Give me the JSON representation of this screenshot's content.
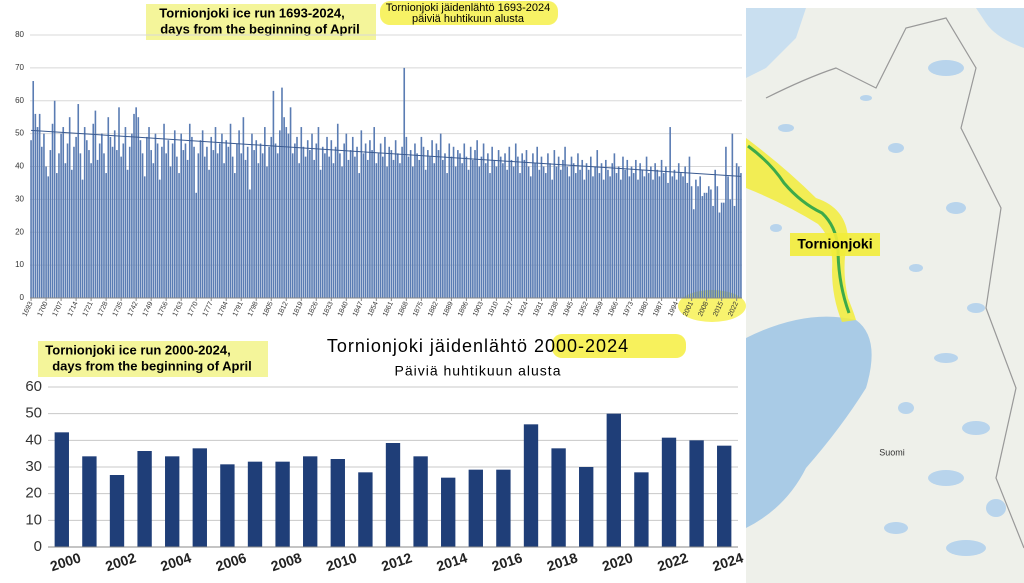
{
  "chart_data": [
    {
      "type": "bar",
      "title": "Tornionjoki jäidenlähtö 1693-2024",
      "subtitle": "päiviä huhtikuun alusta",
      "annotations": [
        "Tornionjoki ice run 1693-2024,",
        "days from the beginning of April"
      ],
      "color": "#5a7cb3",
      "grid": true,
      "xlim": [
        1692.5,
        2024.5
      ],
      "xticks": [
        1693,
        1700,
        1707,
        1714,
        1721,
        1728,
        1735,
        1742,
        1749,
        1756,
        1763,
        1770,
        1777,
        1784,
        1791,
        1798,
        1805,
        1812,
        1819,
        1826,
        1833,
        1840,
        1847,
        1854,
        1861,
        1868,
        1875,
        1882,
        1889,
        1896,
        1903,
        1910,
        1917,
        1924,
        1931,
        1938,
        1945,
        1952,
        1959,
        1966,
        1973,
        1980,
        1987,
        1994,
        2001,
        2008,
        2015,
        2022
      ],
      "ylim": [
        0,
        80
      ],
      "yticks": [
        0,
        10,
        20,
        30,
        40,
        50,
        60,
        70,
        80
      ],
      "x": [
        1693,
        1694,
        1695,
        1696,
        1697,
        1698,
        1699,
        1700,
        1701,
        1702,
        1703,
        1704,
        1705,
        1706,
        1707,
        1708,
        1709,
        1710,
        1711,
        1712,
        1713,
        1714,
        1715,
        1716,
        1717,
        1718,
        1719,
        1720,
        1721,
        1722,
        1723,
        1724,
        1725,
        1726,
        1727,
        1728,
        1729,
        1730,
        1731,
        1732,
        1733,
        1734,
        1735,
        1736,
        1737,
        1738,
        1739,
        1740,
        1741,
        1742,
        1743,
        1744,
        1745,
        1746,
        1747,
        1748,
        1749,
        1750,
        1751,
        1752,
        1753,
        1754,
        1755,
        1756,
        1757,
        1758,
        1759,
        1760,
        1761,
        1762,
        1763,
        1764,
        1765,
        1766,
        1767,
        1768,
        1769,
        1770,
        1771,
        1772,
        1773,
        1774,
        1775,
        1776,
        1777,
        1778,
        1779,
        1780,
        1781,
        1782,
        1783,
        1784,
        1785,
        1786,
        1787,
        1788,
        1789,
        1790,
        1791,
        1792,
        1793,
        1794,
        1795,
        1796,
        1797,
        1798,
        1799,
        1800,
        1801,
        1802,
        1803,
        1804,
        1805,
        1806,
        1807,
        1808,
        1809,
        1810,
        1811,
        1812,
        1813,
        1814,
        1815,
        1816,
        1817,
        1818,
        1819,
        1820,
        1821,
        1822,
        1823,
        1824,
        1825,
        1826,
        1827,
        1828,
        1829,
        1830,
        1831,
        1832,
        1833,
        1834,
        1835,
        1836,
        1837,
        1838,
        1839,
        1840,
        1841,
        1842,
        1843,
        1844,
        1845,
        1846,
        1847,
        1848,
        1849,
        1850,
        1851,
        1852,
        1853,
        1854,
        1855,
        1856,
        1857,
        1858,
        1859,
        1860,
        1861,
        1862,
        1863,
        1864,
        1865,
        1866,
        1867,
        1868,
        1869,
        1870,
        1871,
        1872,
        1873,
        1874,
        1875,
        1876,
        1877,
        1878,
        1879,
        1880,
        1881,
        1882,
        1883,
        1884,
        1885,
        1886,
        1887,
        1888,
        1889,
        1890,
        1891,
        1892,
        1893,
        1894,
        1895,
        1896,
        1897,
        1898,
        1899,
        1900,
        1901,
        1902,
        1903,
        1904,
        1905,
        1906,
        1907,
        1908,
        1909,
        1910,
        1911,
        1912,
        1913,
        1914,
        1915,
        1916,
        1917,
        1918,
        1919,
        1920,
        1921,
        1922,
        1923,
        1924,
        1925,
        1926,
        1927,
        1928,
        1929,
        1930,
        1931,
        1932,
        1933,
        1934,
        1935,
        1936,
        1937,
        1938,
        1939,
        1940,
        1941,
        1942,
        1943,
        1944,
        1945,
        1946,
        1947,
        1948,
        1949,
        1950,
        1951,
        1952,
        1953,
        1954,
        1955,
        1956,
        1957,
        1958,
        1959,
        1960,
        1961,
        1962,
        1963,
        1964,
        1965,
        1966,
        1967,
        1968,
        1969,
        1970,
        1971,
        1972,
        1973,
        1974,
        1975,
        1976,
        1977,
        1978,
        1979,
        1980,
        1981,
        1982,
        1983,
        1984,
        1985,
        1986,
        1987,
        1988,
        1989,
        1990,
        1991,
        1992,
        1993,
        1994,
        1995,
        1996,
        1997,
        1998,
        1999,
        2000,
        2001,
        2002,
        2003,
        2004,
        2005,
        2006,
        2007,
        2008,
        2009,
        2010,
        2011,
        2012,
        2013,
        2014,
        2015,
        2016,
        2017,
        2018,
        2019,
        2020,
        2021,
        2022,
        2023,
        2024
      ],
      "values": [
        48,
        66,
        56,
        52,
        56,
        46,
        50,
        40,
        37,
        45,
        53,
        60,
        38,
        44,
        50,
        52,
        41,
        47,
        55,
        39,
        46,
        49,
        59,
        44,
        36,
        52,
        48,
        45,
        41,
        53,
        57,
        42,
        47,
        50,
        44,
        38,
        55,
        49,
        46,
        51,
        45,
        58,
        43,
        47,
        52,
        39,
        46,
        50,
        56,
        58,
        55,
        48,
        44,
        37,
        49,
        52,
        45,
        41,
        50,
        47,
        36,
        46,
        53,
        44,
        48,
        40,
        47,
        51,
        43,
        38,
        50,
        45,
        47,
        42,
        53,
        49,
        46,
        32,
        44,
        48,
        51,
        43,
        46,
        39,
        49,
        45,
        52,
        44,
        47,
        50,
        41,
        48,
        46,
        53,
        43,
        38,
        47,
        51,
        44,
        55,
        42,
        46,
        33,
        50,
        45,
        48,
        41,
        47,
        44,
        52,
        40,
        46,
        49,
        63,
        47,
        44,
        51,
        64,
        55,
        52,
        50,
        58,
        44,
        47,
        49,
        41,
        52,
        46,
        43,
        48,
        45,
        50,
        42,
        47,
        52,
        39,
        46,
        44,
        49,
        43,
        48,
        41,
        46,
        53,
        44,
        40,
        47,
        50,
        42,
        45,
        49,
        43,
        46,
        38,
        51,
        44,
        47,
        42,
        48,
        45,
        52,
        41,
        44,
        47,
        43,
        49,
        40,
        46,
        45,
        42,
        48,
        44,
        41,
        46,
        70,
        49,
        43,
        45,
        40,
        47,
        44,
        42,
        49,
        46,
        39,
        45,
        43,
        48,
        41,
        47,
        45,
        50,
        42,
        44,
        38,
        47,
        43,
        46,
        40,
        45,
        44,
        41,
        47,
        43,
        39,
        46,
        42,
        45,
        48,
        40,
        43,
        47,
        41,
        44,
        38,
        46,
        42,
        40,
        45,
        43,
        41,
        44,
        39,
        46,
        42,
        40,
        47,
        43,
        38,
        44,
        42,
        45,
        40,
        37,
        44,
        41,
        46,
        39,
        43,
        40,
        38,
        44,
        41,
        36,
        45,
        40,
        43,
        39,
        42,
        46,
        40,
        37,
        43,
        41,
        38,
        44,
        39,
        42,
        36,
        41,
        39,
        43,
        37,
        40,
        45,
        38,
        41,
        36,
        42,
        39,
        37,
        41,
        44,
        38,
        40,
        36,
        43,
        39,
        42,
        37,
        40,
        38,
        42,
        36,
        41,
        39,
        37,
        43,
        38,
        40,
        36,
        41,
        39,
        37,
        42,
        38,
        40,
        35,
        52,
        37,
        39,
        36,
        41,
        38,
        37,
        40,
        35,
        43,
        34,
        27,
        36,
        34,
        37,
        31,
        32,
        32,
        34,
        33,
        28,
        39,
        34,
        26,
        29,
        29,
        46,
        37,
        30,
        50,
        28,
        41,
        40,
        38
      ],
      "trend": {
        "x": [
          1693,
          2024
        ],
        "values": [
          51,
          37
        ]
      }
    },
    {
      "type": "bar",
      "title": "Tornionjoki jäidenlähtö 2000-2024",
      "subtitle": "Päiviä huhtikuun alusta",
      "annotations": [
        "Tornionjoki ice run 2000-2024,",
        "days from the beginning of April"
      ],
      "color": "#1f3e78",
      "grid": true,
      "ylim": [
        0,
        60
      ],
      "yticks": [
        0,
        10,
        20,
        30,
        40,
        50,
        60
      ],
      "categories": [
        "2000",
        null,
        "2002",
        null,
        "2004",
        null,
        "2006",
        null,
        "2008",
        null,
        "2010",
        null,
        "2012",
        null,
        "2014",
        null,
        "2016",
        null,
        "2018",
        null,
        "2020",
        null,
        "2022",
        null,
        "2024"
      ],
      "values": [
        43,
        34,
        27,
        36,
        34,
        37,
        31,
        32,
        32,
        34,
        33,
        28,
        39,
        34,
        26,
        29,
        29,
        46,
        37,
        30,
        50,
        28,
        41,
        40,
        38
      ]
    }
  ],
  "map": {
    "labels": [
      "Tornionjoki",
      "Suomi"
    ]
  }
}
